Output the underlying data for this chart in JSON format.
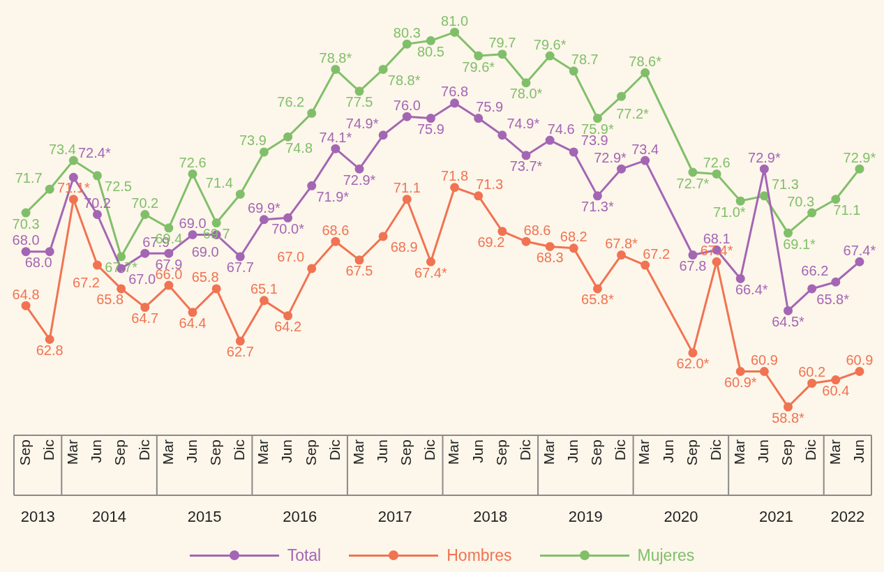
{
  "chart_data": {
    "type": "line",
    "categories": [
      "Sep",
      "Dic",
      "Mar",
      "Jun",
      "Sep",
      "Dic",
      "Mar",
      "Jun",
      "Sep",
      "Dic",
      "Mar",
      "Jun",
      "Sep",
      "Dic",
      "Mar",
      "Jun",
      "Sep",
      "Dic",
      "Mar",
      "Jun",
      "Sep",
      "Dic",
      "Mar",
      "Jun",
      "Sep",
      "Dic",
      "Mar",
      "Jun",
      "Sep",
      "Dic",
      "Mar",
      "Jun",
      "Sep",
      "Dic",
      "Mar",
      "Jun"
    ],
    "annotations": [
      "2013",
      "2014",
      "2015",
      "2016",
      "2017",
      "2018",
      "2019",
      "2020",
      "2021",
      "2022"
    ],
    "series": [
      {
        "name": "Total",
        "color": "#a366b4",
        "values": [
          68.0,
          68.0,
          72.4,
          70.2,
          67.0,
          67.9,
          67.9,
          69.0,
          69.0,
          67.7,
          69.9,
          70.0,
          71.9,
          74.1,
          72.9,
          74.9,
          76.0,
          75.9,
          76.8,
          75.9,
          74.9,
          73.7,
          74.6,
          73.9,
          71.3,
          72.9,
          73.4,
          null,
          67.8,
          68.1,
          66.4,
          72.9,
          64.5,
          65.8,
          66.2,
          67.4
        ],
        "value_labels": [
          "68.0",
          "68.0",
          "72.4*",
          "70.2",
          "67.0",
          "67.9",
          "67.9",
          "69.0",
          "69.0",
          "67.7",
          "69.9*",
          "70.0*",
          "71.9*",
          "74.1*",
          "72.9*",
          "74.9*",
          "76.0",
          "75.9",
          "76.8",
          "75.9",
          "74.9*",
          "73.7*",
          "74.6",
          "73.9",
          "71.3*",
          "72.9*",
          "73.4",
          null,
          "67.8",
          "68.1",
          "66.4*",
          "72.9*",
          "64.5*",
          "65.8*",
          "66.2",
          "67.4*"
        ]
      },
      {
        "name": "Hombres",
        "color": "#f07352",
        "values": [
          64.8,
          62.8,
          71.1,
          67.2,
          65.8,
          64.7,
          66.0,
          64.4,
          65.8,
          62.7,
          65.1,
          64.2,
          67.0,
          68.6,
          67.5,
          68.9,
          71.1,
          67.4,
          71.8,
          71.3,
          69.2,
          68.6,
          68.3,
          68.2,
          65.8,
          67.8,
          67.2,
          null,
          62.0,
          67.4,
          60.9,
          60.9,
          58.8,
          60.2,
          60.4,
          60.9
        ],
        "value_labels": [
          "64.8",
          "62.8",
          "71.1*",
          "67.2",
          "65.8",
          "64.7",
          "66.0",
          "64.4",
          "65.8",
          "62.7",
          "65.1",
          "64.2",
          "67.0",
          "68.6",
          "67.5",
          "68.9",
          "71.1",
          "67.4*",
          "71.8",
          "71.3",
          "69.2",
          "68.6",
          "68.3",
          "68.2",
          "65.8*",
          "67.8*",
          "67.2",
          null,
          "62.0*",
          "67.4*",
          "60.9*",
          "60.9",
          "58.8*",
          "60.2",
          "60.4",
          "60.9"
        ]
      },
      {
        "name": "Mujeres",
        "color": "#80bf6a",
        "values": [
          70.3,
          71.7,
          73.4,
          72.5,
          67.7,
          70.2,
          69.4,
          72.6,
          69.7,
          71.4,
          73.9,
          74.8,
          76.2,
          78.8,
          77.5,
          78.8,
          80.3,
          80.5,
          81.0,
          79.6,
          79.7,
          78.0,
          79.6,
          78.7,
          75.9,
          77.2,
          78.6,
          null,
          72.7,
          72.6,
          71.0,
          71.3,
          69.1,
          70.3,
          71.1,
          72.9
        ],
        "value_labels": [
          "70.3",
          "71.7",
          "73.4",
          "72.5",
          "67.7*",
          "70.2",
          "69.4",
          "72.6",
          "69.7",
          "71.4",
          "73.9",
          "74.8",
          "76.2",
          "78.8*",
          "77.5",
          "78.8*",
          "80.3",
          "80.5",
          "81.0",
          "79.6*",
          "79.7",
          "78.0*",
          "79.6*",
          "78.7",
          "75.9*",
          "77.2*",
          "78.6*",
          null,
          "72.7*",
          "72.6",
          "71.0*",
          "71.3",
          "69.1*",
          "70.3",
          "71.1",
          "72.9*"
        ]
      }
    ],
    "marker": "circle",
    "line_style": "solid",
    "grid": false,
    "legend": "bottom"
  }
}
